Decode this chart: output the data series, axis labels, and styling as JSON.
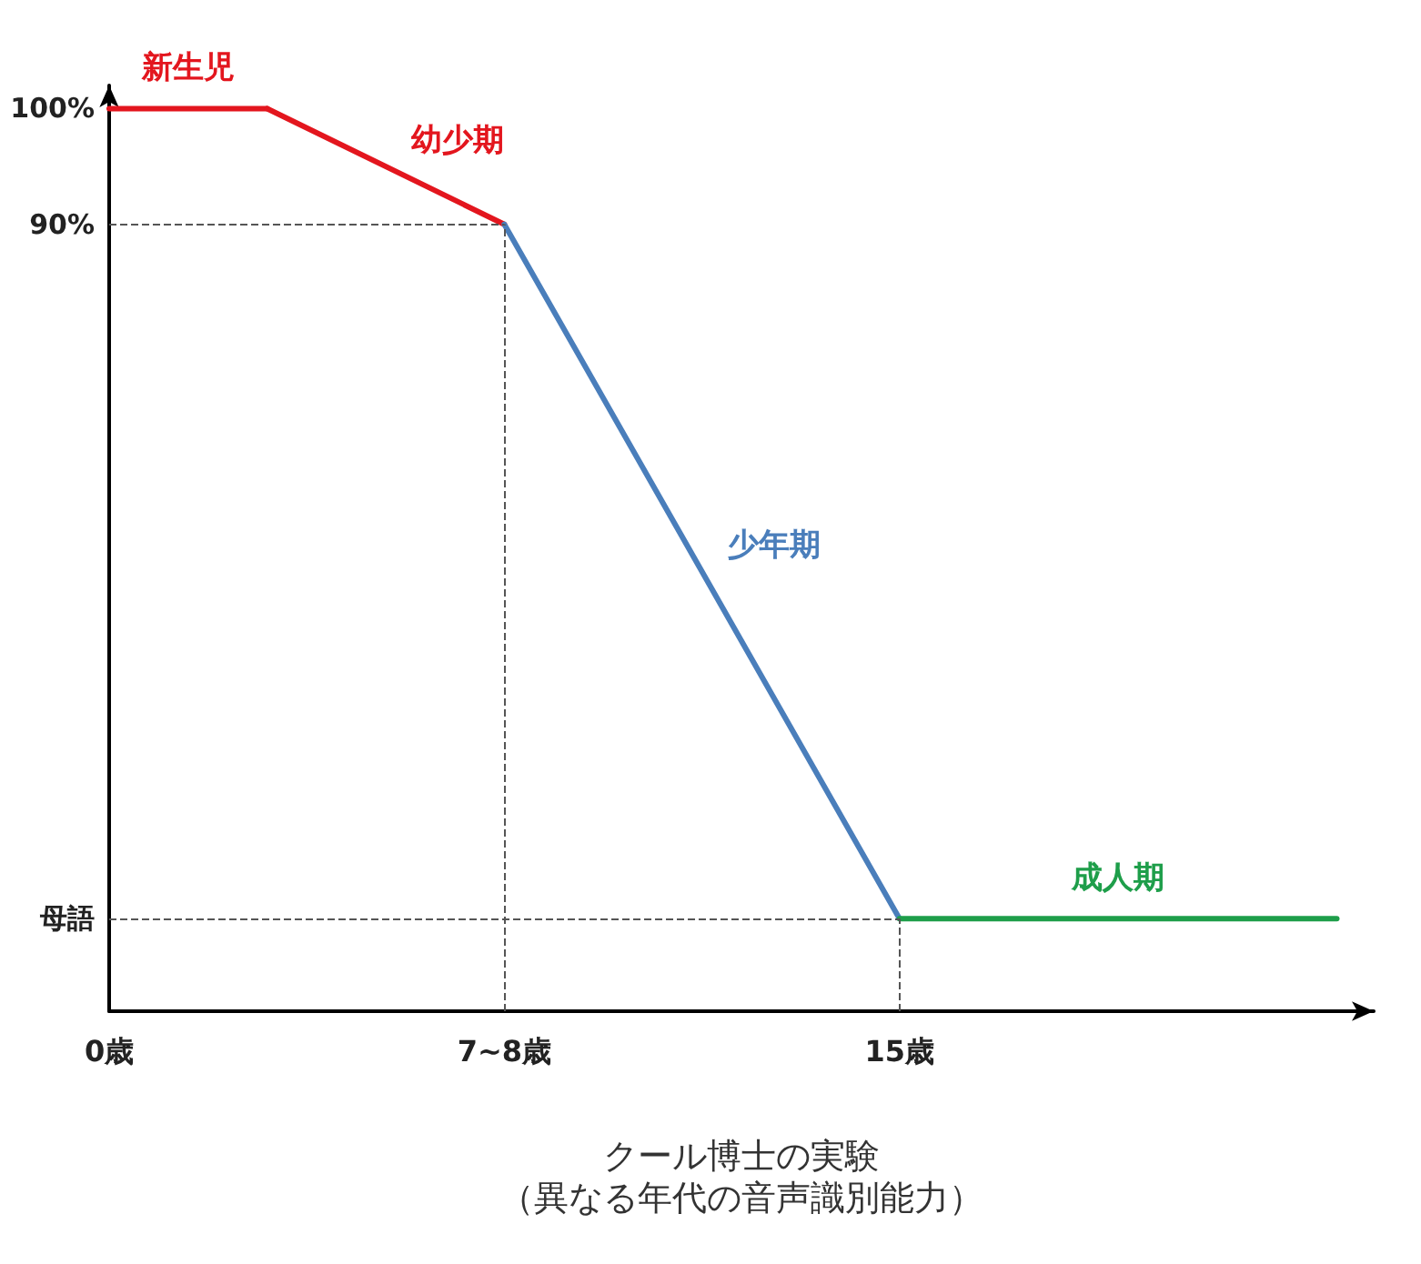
{
  "chart_data": {
    "type": "line",
    "xlabel": "クール博士の実験",
    "annotations": [
      "（異なる年代の音声識別能力）"
    ],
    "series": [
      {
        "name": "新生児",
        "color": "#e3161e",
        "x": [
          0,
          3
        ],
        "values": [
          100,
          100
        ]
      },
      {
        "name": "幼少期",
        "color": "#e3161e",
        "x": [
          3,
          7.5
        ],
        "values": [
          100,
          90
        ]
      },
      {
        "name": "少年期",
        "color": "#4a7ebb",
        "x": [
          7.5,
          15
        ],
        "values": [
          90,
          30
        ]
      },
      {
        "name": "成人期",
        "color": "#1e9e4a",
        "x": [
          15,
          23.3
        ],
        "values": [
          30,
          30
        ]
      }
    ],
    "xlim": [
      0,
      24
    ],
    "xticks": [
      {
        "value": 0,
        "label": "0歳"
      },
      {
        "value": 7.5,
        "label": "7~8歳"
      },
      {
        "value": 15,
        "label": "15歳"
      }
    ],
    "ylim": [
      22,
      102
    ],
    "yticks": [
      {
        "value": 30,
        "label": "母語"
      },
      {
        "value": 90,
        "label": "90%"
      },
      {
        "value": 100,
        "label": "100%"
      }
    ],
    "ref_lines": [
      {
        "axis": "y",
        "value": 90,
        "line_style": "dashed",
        "color": "#555555"
      },
      {
        "axis": "y",
        "value": 30,
        "line_style": "dashed",
        "color": "#555555"
      },
      {
        "axis": "x",
        "value": 7.5,
        "line_style": "dashed",
        "color": "#555555"
      },
      {
        "axis": "x",
        "value": 15,
        "line_style": "dashed",
        "color": "#555555"
      }
    ],
    "grid": false,
    "legend": false,
    "marker": "none",
    "line_style": "solid"
  }
}
